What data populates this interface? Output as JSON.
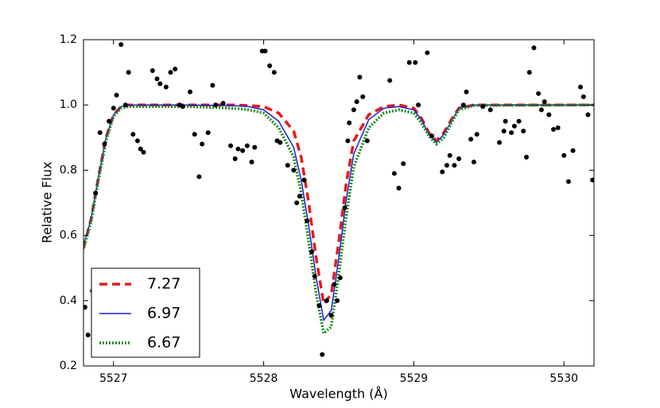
{
  "chart_data": {
    "type": "line",
    "xlabel": "Wavelength (Å)",
    "ylabel": "Relative Flux",
    "xlim": [
      5526.8,
      5530.2
    ],
    "ylim": [
      0.2,
      1.2
    ],
    "xticks": [
      5527,
      5528,
      5529,
      5530
    ],
    "yticks": [
      0.2,
      0.4,
      0.6,
      0.8,
      {
        "value": 1,
        "label": "1.0"
      },
      1.2
    ],
    "legend": "lower left",
    "x": [
      5526.8,
      5526.85,
      5526.9,
      5526.95,
      5527.0,
      5527.05,
      5527.1,
      5527.5,
      5527.8,
      5527.9,
      5528.0,
      5528.1,
      5528.2,
      5528.25,
      5528.3,
      5528.35,
      5528.4,
      5528.45,
      5528.5,
      5528.55,
      5528.6,
      5528.7,
      5528.8,
      5528.9,
      5529.0,
      5529.05,
      5529.1,
      5529.15,
      5529.2,
      5529.25,
      5529.3,
      5529.4,
      5530.2
    ],
    "series": [
      {
        "name": "7.27",
        "color": "#e41a1c",
        "linestyle": "dashed",
        "width": 3.5,
        "values": [
          0.56,
          0.65,
          0.78,
          0.9,
          0.97,
          0.995,
          1.0,
          1.0,
          1.0,
          0.998,
          0.995,
          0.975,
          0.92,
          0.84,
          0.7,
          0.53,
          0.39,
          0.42,
          0.58,
          0.76,
          0.89,
          0.97,
          0.995,
          1.0,
          0.99,
          0.96,
          0.915,
          0.89,
          0.915,
          0.955,
          0.99,
          1.0,
          1.0
        ]
      },
      {
        "name": "6.97",
        "color": "#1f1fd0",
        "linestyle": "solid",
        "width": 1.5,
        "values": [
          0.57,
          0.65,
          0.78,
          0.9,
          0.97,
          0.995,
          1.0,
          1.0,
          0.998,
          0.995,
          0.985,
          0.95,
          0.87,
          0.77,
          0.63,
          0.47,
          0.34,
          0.37,
          0.53,
          0.71,
          0.85,
          0.955,
          0.99,
          0.995,
          0.985,
          0.955,
          0.91,
          0.885,
          0.91,
          0.95,
          0.99,
          1.0,
          1.0
        ]
      },
      {
        "name": "6.67",
        "color": "#1a8a1a",
        "linestyle": "dotted",
        "width": 3.5,
        "values": [
          0.56,
          0.64,
          0.77,
          0.89,
          0.965,
          0.99,
          0.995,
          0.995,
          0.99,
          0.985,
          0.975,
          0.93,
          0.84,
          0.73,
          0.58,
          0.42,
          0.3,
          0.32,
          0.48,
          0.66,
          0.81,
          0.93,
          0.975,
          0.985,
          0.975,
          0.945,
          0.905,
          0.88,
          0.9,
          0.945,
          0.985,
          0.998,
          1.0
        ]
      }
    ],
    "points": {
      "type": "scatter",
      "color": "#000000",
      "x": [
        5526.81,
        5526.83,
        5526.86,
        5526.88,
        5526.91,
        5526.94,
        5526.97,
        5527.0,
        5527.02,
        5527.05,
        5527.08,
        5527.1,
        5527.13,
        5527.16,
        5527.18,
        5527.2,
        5527.26,
        5527.29,
        5527.31,
        5527.35,
        5527.38,
        5527.41,
        5527.44,
        5527.46,
        5527.51,
        5527.54,
        5527.57,
        5527.59,
        5527.63,
        5527.66,
        5527.68,
        5527.73,
        5527.78,
        5527.81,
        5527.83,
        5527.86,
        5527.89,
        5527.92,
        5527.94,
        5527.99,
        5528.01,
        5528.04,
        5528.07,
        5528.09,
        5528.11,
        5528.16,
        5528.2,
        5528.22,
        5528.24,
        5528.27,
        5528.29,
        5528.32,
        5528.34,
        5528.37,
        5528.39,
        5528.42,
        5528.45,
        5528.47,
        5528.49,
        5528.51,
        5528.54,
        5528.56,
        5528.57,
        5528.6,
        5528.62,
        5528.64,
        5528.66,
        5528.69,
        5528.84,
        5528.87,
        5528.9,
        5528.93,
        5528.97,
        5529.01,
        5529.03,
        5529.09,
        5529.12,
        5529.19,
        5529.22,
        5529.24,
        5529.27,
        5529.3,
        5529.33,
        5529.35,
        5529.38,
        5529.4,
        5529.42,
        5529.46,
        5529.51,
        5529.57,
        5529.6,
        5529.61,
        5529.65,
        5529.67,
        5529.7,
        5529.73,
        5529.75,
        5529.77,
        5529.8,
        5529.83,
        5529.85,
        5529.87,
        5529.9,
        5529.93,
        5529.96,
        5530.0,
        5530.03,
        5530.06,
        5530.11,
        5530.13,
        5530.16,
        5530.19
      ],
      "values": [
        0.38,
        0.295,
        0.43,
        0.73,
        0.915,
        0.88,
        0.95,
        0.99,
        1.03,
        1.185,
        1.0,
        1.1,
        0.91,
        0.89,
        0.865,
        0.855,
        1.105,
        1.08,
        1.065,
        1.055,
        1.1,
        1.11,
        1.0,
        0.995,
        1.04,
        0.91,
        0.78,
        0.88,
        0.915,
        1.06,
        1.0,
        1.005,
        0.875,
        0.835,
        0.865,
        0.86,
        0.875,
        0.825,
        0.87,
        1.165,
        1.165,
        1.12,
        1.1,
        0.89,
        0.885,
        0.815,
        0.8,
        0.7,
        0.72,
        0.77,
        0.645,
        0.55,
        0.475,
        0.385,
        0.235,
        0.4,
        0.355,
        0.45,
        0.4,
        0.47,
        0.685,
        0.89,
        0.945,
        0.985,
        1.01,
        1.085,
        1.025,
        0.89,
        1.075,
        0.79,
        0.745,
        0.82,
        1.13,
        1.13,
        1.0,
        1.16,
        0.905,
        0.795,
        0.815,
        0.845,
        0.815,
        0.835,
        1.0,
        1.04,
        0.895,
        0.825,
        0.91,
        0.995,
        0.985,
        0.885,
        0.92,
        0.95,
        0.915,
        0.935,
        0.95,
        0.92,
        0.84,
        1.1,
        1.175,
        1.035,
        0.985,
        1.01,
        0.97,
        0.925,
        0.93,
        0.845,
        0.765,
        0.86,
        1.055,
        1.025,
        0.97,
        0.77
      ]
    }
  }
}
